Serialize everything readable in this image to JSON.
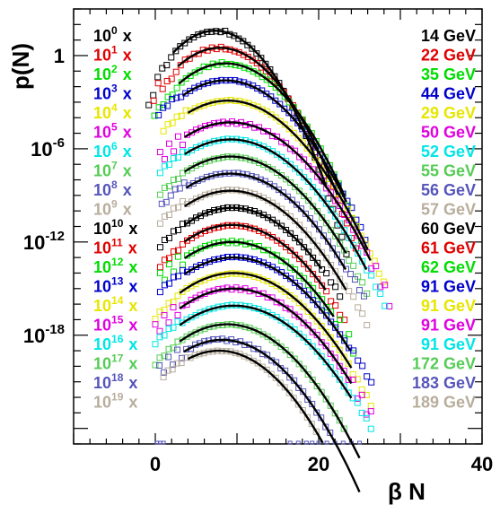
{
  "chart_data": {
    "type": "scatter",
    "xlabel": "β N",
    "ylabel": "p(N)",
    "xlim": [
      -10,
      40
    ],
    "ylim": [
      -25,
      3
    ],
    "y_scale": "log",
    "x_ticks": [
      "0",
      "20",
      "40"
    ],
    "y_ticks": [
      {
        "label": "1",
        "exp": 0
      },
      {
        "label": "10",
        "sup": "-6",
        "exp": -6
      },
      {
        "label": "10",
        "sup": "-12",
        "exp": -12
      },
      {
        "label": "10",
        "sup": "-18",
        "exp": -18
      }
    ],
    "grid": false,
    "legend_position": "top-right",
    "series": [
      {
        "name": "14 GeV",
        "scale_base": "10",
        "scale_exp": "0",
        "scale_suffix": "x",
        "color": "#000000",
        "peak_x": 7.3,
        "peak_log": 1.6,
        "sigma": 5.6,
        "x_range": [
          2.2,
          21.0
        ]
      },
      {
        "name": "22 GeV",
        "scale_base": "10",
        "scale_exp": "1",
        "scale_suffix": "x",
        "color": "#e00000",
        "peak_x": 7.9,
        "peak_log": 0.5,
        "sigma": 6.1,
        "x_range": [
          2.8,
          22.3
        ]
      },
      {
        "name": "35 GeV",
        "scale_base": "10",
        "scale_exp": "2",
        "scale_suffix": "x",
        "color": "#00dd00",
        "peak_x": 8.6,
        "peak_log": -0.5,
        "sigma": 6.5,
        "x_range": [
          2.9,
          23.2
        ]
      },
      {
        "name": "44 GeV",
        "scale_base": "10",
        "scale_exp": "3",
        "scale_suffix": "x",
        "color": "#0000cc",
        "peak_x": 8.6,
        "peak_log": -1.6,
        "sigma": 6.9,
        "x_range": [
          3.4,
          23.5
        ]
      },
      {
        "name": "29 GeV",
        "scale_base": "10",
        "scale_exp": "4",
        "scale_suffix": "x",
        "color": "#e6e600",
        "peak_x": 8.9,
        "peak_log": -2.9,
        "sigma": 7.2,
        "x_range": [
          4.0,
          26.0
        ]
      },
      {
        "name": "50 GeV",
        "scale_base": "10",
        "scale_exp": "5",
        "scale_suffix": "x",
        "color": "#e000e0",
        "peak_x": 9.2,
        "peak_log": -4.3,
        "sigma": 7.5,
        "x_range": [
          3.6,
          26.4
        ]
      },
      {
        "name": "52 GeV",
        "scale_base": "10",
        "scale_exp": "6",
        "scale_suffix": "x",
        "color": "#00e6e6",
        "peak_x": 9.2,
        "peak_log": -5.4,
        "sigma": 7.5,
        "x_range": [
          3.6,
          26.0
        ]
      },
      {
        "name": "55 GeV",
        "scale_base": "10",
        "scale_exp": "7",
        "scale_suffix": "x",
        "color": "#55cc55",
        "peak_x": 9.2,
        "peak_log": -6.5,
        "sigma": 7.4,
        "x_range": [
          3.6,
          23.5
        ]
      },
      {
        "name": "56 GeV",
        "scale_base": "10",
        "scale_exp": "8",
        "scale_suffix": "x",
        "color": "#5555bb",
        "peak_x": 9.2,
        "peak_log": -7.6,
        "sigma": 7.4,
        "x_range": [
          3.8,
          23.5
        ]
      },
      {
        "name": "57 GeV",
        "scale_base": "10",
        "scale_exp": "9",
        "scale_suffix": "x",
        "color": "#b8ad9c",
        "peak_x": 9.2,
        "peak_log": -8.7,
        "sigma": 7.3,
        "x_range": [
          3.6,
          23.5
        ]
      },
      {
        "name": "60 GeV",
        "scale_base": "10",
        "scale_exp": "10",
        "scale_suffix": "x",
        "color": "#000000",
        "peak_x": 9.4,
        "peak_log": -9.8,
        "sigma": 7.2,
        "x_range": [
          3.6,
          20.5
        ]
      },
      {
        "name": "61 GeV",
        "scale_base": "10",
        "scale_exp": "11",
        "scale_suffix": "x",
        "color": "#e00000",
        "peak_x": 9.4,
        "peak_log": -10.9,
        "sigma": 7.3,
        "x_range": [
          3.6,
          21.0
        ]
      },
      {
        "name": "62 GeV",
        "scale_base": "10",
        "scale_exp": "12",
        "scale_suffix": "x",
        "color": "#00dd00",
        "peak_x": 9.4,
        "peak_log": -12.0,
        "sigma": 7.4,
        "x_range": [
          3.6,
          22.0
        ]
      },
      {
        "name": "91 GeV",
        "scale_base": "10",
        "scale_exp": "13",
        "scale_suffix": "x",
        "color": "#0000cc",
        "peak_x": 9.6,
        "peak_log": -13.0,
        "sigma": 7.6,
        "x_range": [
          3.6,
          24.0
        ]
      },
      {
        "name": "91 GeV",
        "scale_base": "10",
        "scale_exp": "14",
        "scale_suffix": "x",
        "color": "#e6e600",
        "peak_x": 9.6,
        "peak_log": -14.0,
        "sigma": 7.6,
        "x_range": [
          3.0,
          24.0
        ]
      },
      {
        "name": "91 GeV",
        "scale_base": "10",
        "scale_exp": "15",
        "scale_suffix": "x",
        "color": "#e000e0",
        "peak_x": 9.6,
        "peak_log": -15.0,
        "sigma": 7.6,
        "x_range": [
          3.0,
          24.0
        ]
      },
      {
        "name": "91 GeV",
        "scale_base": "10",
        "scale_exp": "16",
        "scale_suffix": "x",
        "color": "#00e6e6",
        "peak_x": 9.6,
        "peak_log": -16.1,
        "sigma": 7.7,
        "x_range": [
          3.0,
          24.0
        ]
      },
      {
        "name": "172 GeV",
        "scale_base": "10",
        "scale_exp": "17",
        "scale_suffix": "x",
        "color": "#55cc55",
        "peak_x": 8.8,
        "peak_log": -17.3,
        "sigma": 7.2,
        "x_range": [
          3.0,
          25.0
        ]
      },
      {
        "name": "183 GeV",
        "scale_base": "10",
        "scale_exp": "18",
        "scale_suffix": "x",
        "color": "#5555bb",
        "peak_x": 8.2,
        "peak_log": -18.3,
        "sigma": 7.0,
        "x_range": [
          3.5,
          25.0
        ]
      },
      {
        "name": "189 GeV",
        "scale_base": "10",
        "scale_exp": "19",
        "scale_suffix": "x",
        "color": "#b8ad9c",
        "peak_x": 7.8,
        "peak_log": -19.0,
        "sigma": 6.8,
        "x_range": [
          4.0,
          20.5
        ]
      }
    ]
  }
}
